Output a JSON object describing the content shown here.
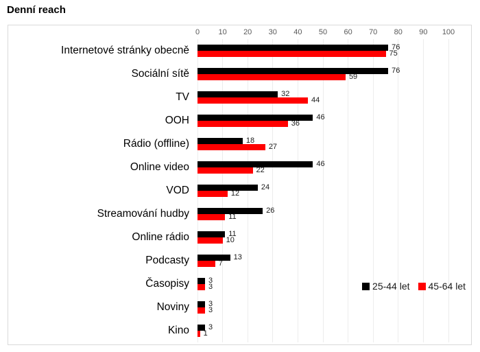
{
  "title": "Denní reach",
  "chart_data": {
    "type": "bar",
    "orientation": "horizontal",
    "title": "Denní reach",
    "categories": [
      "Internetové stránky obecně",
      "Sociální sítě",
      "TV",
      "OOH",
      "Rádio (offline)",
      "Online video",
      "VOD",
      "Streamování hudby",
      "Online rádio",
      "Podcasty",
      "Časopisy",
      "Noviny",
      "Kino"
    ],
    "series": [
      {
        "name": "25-44 let",
        "color": "#000000",
        "values": [
          76,
          76,
          32,
          46,
          18,
          46,
          24,
          26,
          11,
          13,
          3,
          3,
          3
        ]
      },
      {
        "name": "45-64 let",
        "color": "#ff0000",
        "values": [
          75,
          59,
          44,
          36,
          27,
          22,
          12,
          11,
          10,
          7,
          3,
          3,
          1
        ]
      }
    ],
    "xlim": [
      0,
      100
    ],
    "x_ticks": [
      0,
      10,
      20,
      30,
      40,
      50,
      60,
      70,
      80,
      90,
      100
    ],
    "axis_position": "top",
    "grid": true,
    "grid_color": "#ececec",
    "tick_color": "#595959",
    "value_labels": true,
    "legend_position": "bottom-right"
  }
}
